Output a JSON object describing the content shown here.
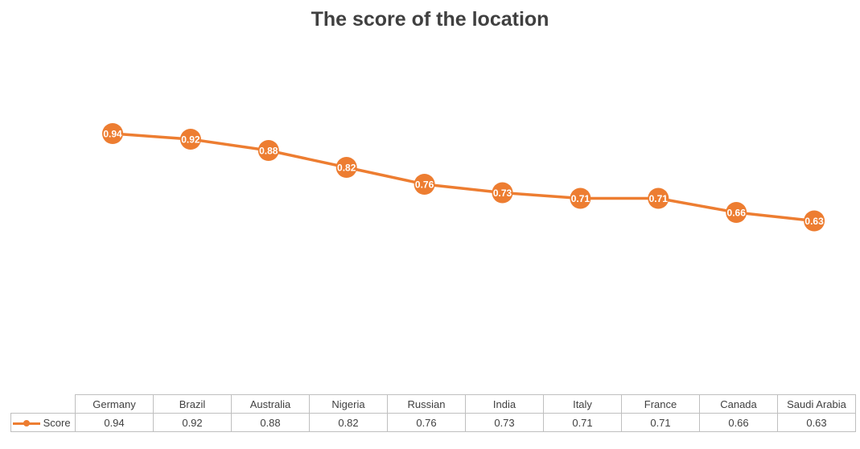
{
  "chart_data": {
    "type": "line",
    "title": "The score of the location",
    "categories": [
      "Germany",
      "Brazil",
      "Australia",
      "Nigeria",
      "Russian",
      "India",
      "Italy",
      "France",
      "Canada",
      "Saudi Arabia"
    ],
    "series": [
      {
        "name": "Score",
        "values": [
          0.94,
          0.92,
          0.88,
          0.82,
          0.76,
          0.73,
          0.71,
          0.71,
          0.66,
          0.63
        ],
        "data_labels": [
          "0.94",
          "0.92",
          "0.88",
          "0.82",
          "0.76",
          "0.73",
          "0.71",
          "0.71",
          "0.66",
          "0.63"
        ]
      }
    ],
    "xlabel": "",
    "ylabel": "",
    "grid": false,
    "legend": "data-table",
    "data_table": true,
    "series_color": "#ED7D31"
  }
}
